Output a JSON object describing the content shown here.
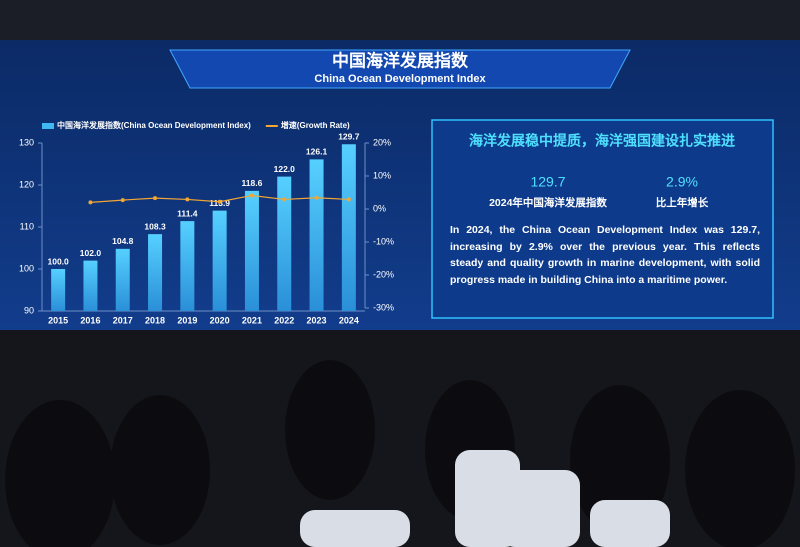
{
  "chart_data": {
    "type": "bar",
    "title": "中国海洋发展指数",
    "subtitle": "China Ocean Development Index",
    "categories": [
      "2015",
      "2016",
      "2017",
      "2018",
      "2019",
      "2020",
      "2021",
      "2022",
      "2023",
      "2024"
    ],
    "series": [
      {
        "name": "中国海洋发展指数(China Ocean Development Index)",
        "color": "#3fb8f2",
        "values": [
          100.0,
          102.0,
          104.8,
          108.3,
          111.4,
          113.9,
          118.6,
          122.0,
          126.1,
          129.7
        ],
        "value_labels": [
          "100.0",
          "102.0",
          "104.8",
          "108.3",
          "111.4",
          "113.9",
          "118.6",
          "122.0",
          "126.1",
          "129.7"
        ]
      },
      {
        "name": "增速(Growth Rate)",
        "color": "#f2a634",
        "type": "line",
        "axis": "y2",
        "values": [
          null,
          2.0,
          2.7,
          3.3,
          2.9,
          2.2,
          4.1,
          2.9,
          3.4,
          2.9
        ]
      }
    ],
    "ylim": [
      90,
      130
    ],
    "yticks": [
      90,
      100,
      110,
      120,
      130
    ],
    "y2lim": [
      -30,
      20
    ],
    "y2ticks": [
      {
        "value": -30,
        "label": "-30%"
      },
      {
        "value": -20,
        "label": "-20%"
      },
      {
        "value": -10,
        "label": "-10%"
      },
      {
        "value": 0,
        "label": "0%"
      },
      {
        "value": 10,
        "label": "10%"
      },
      {
        "value": 20,
        "label": "20%"
      }
    ],
    "grid": false,
    "legend": "top"
  },
  "panel": {
    "heading": "海洋发展稳中提质，海洋强国建设扎实推进",
    "stats": [
      {
        "value": "129.7",
        "label": "2024年中国海洋发展指数"
      },
      {
        "value": "2.9%",
        "label": "比上年增长"
      }
    ],
    "text": "In 2024, the China Ocean Development Index was 129.7, increasing by 2.9% over the previous year. This reflects steady and quality growth in marine development, with solid progress made in building China into a maritime power."
  }
}
